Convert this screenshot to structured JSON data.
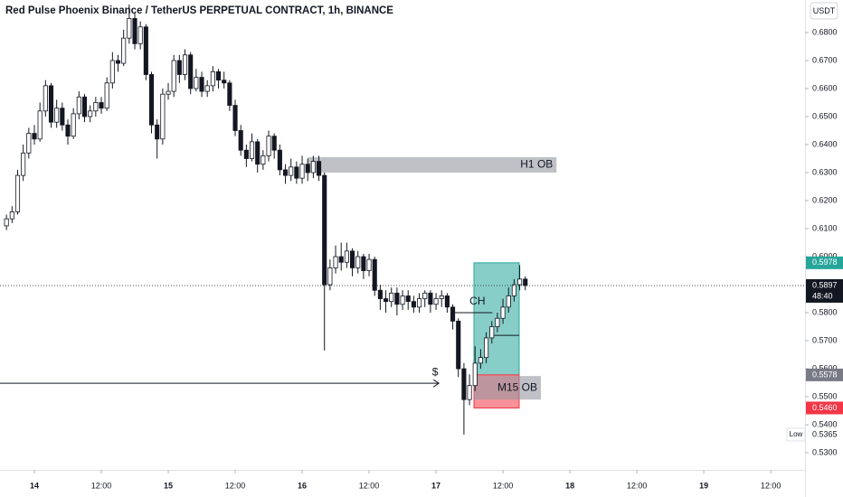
{
  "chart_data": {
    "type": "candlestick",
    "title": "Red Pulse Phoenix Binance / TetherUS PERPETUAL CONTRACT, 1h, BINANCE",
    "currency": "USDT",
    "open": [
      0.611,
      0.6135,
      0.616,
      0.629,
      0.637,
      0.644,
      0.642,
      0.652,
      0.661,
      0.648,
      0.653,
      0.647,
      0.643,
      0.651,
      0.657,
      0.65,
      0.652,
      0.655,
      0.653,
      0.662,
      0.67,
      0.669,
      0.678,
      0.685,
      0.676,
      0.682,
      0.665,
      0.647,
      0.642,
      0.658,
      0.659,
      0.67,
      0.665,
      0.672,
      0.66,
      0.664,
      0.659,
      0.661,
      0.666,
      0.663,
      0.662,
      0.654,
      0.645,
      0.638,
      0.635,
      0.641,
      0.633,
      0.636,
      0.643,
      0.638,
      0.631,
      0.629,
      0.632,
      0.628,
      0.633,
      0.63,
      0.634,
      0.629,
      0.59,
      0.596,
      0.6,
      0.598,
      0.602,
      0.596,
      0.6,
      0.595,
      0.599,
      0.588,
      0.585,
      0.584,
      0.587,
      0.583,
      0.586,
      0.584,
      0.582,
      0.585,
      0.587,
      0.583,
      0.585,
      0.586,
      0.582,
      0.577,
      0.56,
      0.549,
      0.554,
      0.562,
      0.564,
      0.571,
      0.575,
      0.578,
      0.582,
      0.586,
      0.59,
      0.592
    ],
    "high": [
      0.615,
      0.618,
      0.631,
      0.64,
      0.646,
      0.647,
      0.655,
      0.663,
      0.662,
      0.656,
      0.655,
      0.649,
      0.653,
      0.659,
      0.658,
      0.654,
      0.657,
      0.657,
      0.664,
      0.673,
      0.672,
      0.681,
      0.69,
      0.687,
      0.684,
      0.683,
      0.666,
      0.649,
      0.66,
      0.662,
      0.672,
      0.672,
      0.674,
      0.673,
      0.667,
      0.666,
      0.663,
      0.668,
      0.667,
      0.666,
      0.663,
      0.656,
      0.647,
      0.64,
      0.644,
      0.642,
      0.638,
      0.645,
      0.644,
      0.64,
      0.633,
      0.635,
      0.634,
      0.636,
      0.635,
      0.636,
      0.636,
      0.63,
      0.599,
      0.604,
      0.605,
      0.605,
      0.603,
      0.602,
      0.601,
      0.601,
      0.6,
      0.59,
      0.588,
      0.589,
      0.589,
      0.588,
      0.588,
      0.586,
      0.587,
      0.588,
      0.588,
      0.587,
      0.588,
      0.587,
      0.583,
      0.578,
      0.562,
      0.558,
      0.568,
      0.567,
      0.573,
      0.577,
      0.58,
      0.585,
      0.589,
      0.592,
      0.597,
      0.593
    ],
    "low": [
      0.6095,
      0.612,
      0.615,
      0.627,
      0.635,
      0.64,
      0.641,
      0.65,
      0.646,
      0.646,
      0.645,
      0.64,
      0.642,
      0.649,
      0.648,
      0.648,
      0.65,
      0.651,
      0.652,
      0.66,
      0.666,
      0.668,
      0.676,
      0.674,
      0.674,
      0.663,
      0.644,
      0.635,
      0.64,
      0.656,
      0.657,
      0.662,
      0.663,
      0.658,
      0.659,
      0.657,
      0.657,
      0.659,
      0.66,
      0.66,
      0.652,
      0.643,
      0.636,
      0.632,
      0.634,
      0.63,
      0.631,
      0.634,
      0.635,
      0.629,
      0.626,
      0.627,
      0.626,
      0.626,
      0.627,
      0.628,
      0.627,
      0.5665,
      0.588,
      0.594,
      0.595,
      0.596,
      0.593,
      0.594,
      0.592,
      0.593,
      0.586,
      0.581,
      0.58,
      0.582,
      0.579,
      0.581,
      0.581,
      0.58,
      0.58,
      0.582,
      0.58,
      0.581,
      0.582,
      0.58,
      0.574,
      0.557,
      0.5365,
      0.547,
      0.552,
      0.56,
      0.562,
      0.569,
      0.573,
      0.576,
      0.58,
      0.584,
      0.588,
      0.588
    ],
    "close": [
      0.6135,
      0.616,
      0.629,
      0.637,
      0.644,
      0.642,
      0.652,
      0.661,
      0.648,
      0.653,
      0.647,
      0.643,
      0.651,
      0.657,
      0.65,
      0.652,
      0.655,
      0.653,
      0.662,
      0.67,
      0.669,
      0.678,
      0.685,
      0.676,
      0.682,
      0.665,
      0.647,
      0.642,
      0.658,
      0.659,
      0.67,
      0.665,
      0.672,
      0.66,
      0.664,
      0.659,
      0.661,
      0.666,
      0.663,
      0.662,
      0.654,
      0.645,
      0.638,
      0.635,
      0.641,
      0.633,
      0.636,
      0.643,
      0.638,
      0.631,
      0.629,
      0.632,
      0.628,
      0.633,
      0.63,
      0.634,
      0.629,
      0.59,
      0.596,
      0.6,
      0.598,
      0.602,
      0.596,
      0.6,
      0.595,
      0.599,
      0.588,
      0.585,
      0.584,
      0.587,
      0.583,
      0.586,
      0.584,
      0.582,
      0.585,
      0.587,
      0.583,
      0.585,
      0.586,
      0.582,
      0.577,
      0.56,
      0.549,
      0.554,
      0.562,
      0.564,
      0.571,
      0.575,
      0.578,
      0.582,
      0.586,
      0.59,
      0.592,
      0.5897
    ],
    "xlim": [
      -1.16,
      143.14
    ],
    "xticks": [
      {
        "value": 5,
        "label": "14"
      },
      {
        "value": 17,
        "label": "12:00"
      },
      {
        "value": 29,
        "label": "15"
      },
      {
        "value": 41,
        "label": "12:00"
      },
      {
        "value": 53,
        "label": "16"
      },
      {
        "value": 65,
        "label": "12:00"
      },
      {
        "value": 77,
        "label": "17"
      },
      {
        "value": 89,
        "label": "12:00"
      },
      {
        "value": 101,
        "label": "18"
      },
      {
        "value": 113,
        "label": "12:00"
      },
      {
        "value": 125,
        "label": "19"
      },
      {
        "value": 137,
        "label": "12:00"
      }
    ],
    "ylim": [
      0.5239,
      0.6916
    ],
    "yticks": [
      {
        "value": 0.68,
        "label": "0.6800"
      },
      {
        "value": 0.67,
        "label": "0.6700"
      },
      {
        "value": 0.66,
        "label": "0.6600"
      },
      {
        "value": 0.65,
        "label": "0.6500"
      },
      {
        "value": 0.64,
        "label": "0.6400"
      },
      {
        "value": 0.63,
        "label": "0.6300"
      },
      {
        "value": 0.62,
        "label": "0.6200"
      },
      {
        "value": 0.61,
        "label": "0.6100"
      },
      {
        "value": 0.6,
        "label": "0.6000"
      },
      {
        "value": 0.58,
        "label": "0.5800"
      },
      {
        "value": 0.57,
        "label": "0.5700"
      },
      {
        "value": 0.56,
        "label": "0.5600"
      },
      {
        "value": 0.55,
        "label": "0.5500"
      },
      {
        "value": 0.54,
        "label": "0.5400"
      },
      {
        "value": 0.53,
        "label": "0.5300"
      }
    ],
    "price_labels": [
      {
        "value": 0.5978,
        "label": "0.5978",
        "color": "#26a69a"
      },
      {
        "value": 0.5578,
        "label": "0.5578",
        "color": "#787b86"
      },
      {
        "value": 0.546,
        "label": "0.5460",
        "color": "#f23645"
      }
    ],
    "current_price": {
      "value": 0.5897,
      "label": "0.5897",
      "countdown": "48:40",
      "color": "#131722"
    },
    "low_label": {
      "value": 0.5365,
      "label": "0.5365",
      "name": "Low"
    },
    "zones": [
      {
        "label": "H1 OB",
        "top": 0.6355,
        "bottom": 0.63,
        "x0": 54.0,
        "x1": 98.6,
        "color": "#9598a1"
      },
      {
        "top": 0.5978,
        "bottom": 0.5578,
        "x0": 83.8,
        "x1": 91.9,
        "color": "#26a69a"
      },
      {
        "top": 0.5578,
        "bottom": 0.546,
        "x0": 83.8,
        "x1": 91.9,
        "color": "#f23645"
      },
      {
        "label": "M15 OB",
        "top": 0.5574,
        "bottom": 0.549,
        "x0": 83.8,
        "x1": 95.8,
        "color": "#9598a1"
      }
    ],
    "lines": [
      {
        "label": "$",
        "value": 0.5548,
        "x0": -1.16,
        "x1": 77.5,
        "arrow": true
      },
      {
        "label": "CH",
        "value": 0.58,
        "x0": 79.8,
        "x1": 87.1
      },
      {
        "value": 0.5719,
        "x0": 87.4,
        "x1": 91.9
      }
    ]
  }
}
